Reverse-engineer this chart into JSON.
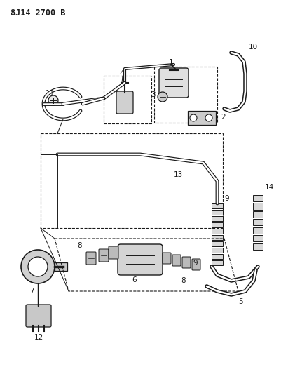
{
  "title": "8J14 2700 B",
  "bg_color": "#ffffff",
  "lc": "#1a1a1a",
  "figsize": [
    4.02,
    5.33
  ],
  "dpi": 100,
  "lw_tube": 1.8,
  "lw_thin": 0.8,
  "label_fs": 7.5
}
